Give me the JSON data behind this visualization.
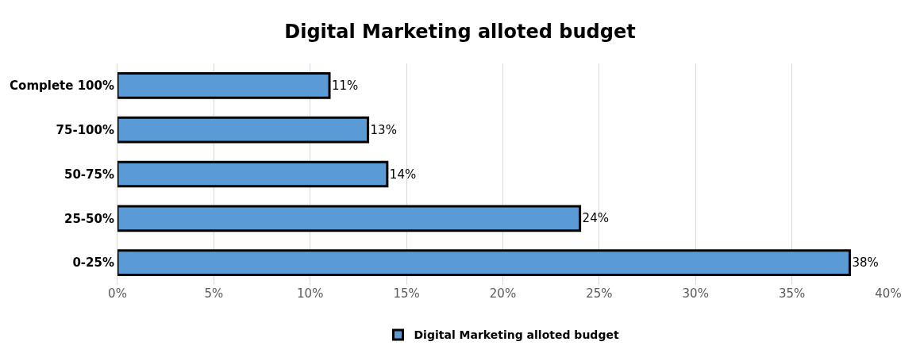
{
  "chart_data": {
    "type": "bar",
    "orientation": "horizontal",
    "title": "Digital Marketing alloted budget",
    "categories": [
      "Complete 100%",
      "75-100%",
      "50-75%",
      "25-50%",
      "0-25%"
    ],
    "series": [
      {
        "name": "Digital Marketing alloted budget",
        "color": "#5b9bd5",
        "values": [
          11,
          13,
          14,
          24,
          38
        ],
        "value_labels": [
          "11%",
          "13%",
          "14%",
          "24%",
          "38%"
        ]
      }
    ],
    "xlim": [
      0,
      40
    ],
    "xticks": [
      {
        "value": 0,
        "label": "0%"
      },
      {
        "value": 5,
        "label": "5%"
      },
      {
        "value": 10,
        "label": "10%"
      },
      {
        "value": 15,
        "label": "15%"
      },
      {
        "value": 20,
        "label": "20%"
      },
      {
        "value": 25,
        "label": "25%"
      },
      {
        "value": 30,
        "label": "30%"
      },
      {
        "value": 35,
        "label": "35%"
      },
      {
        "value": 40,
        "label": "40%"
      }
    ],
    "grid": "x",
    "legend": "bottom"
  }
}
